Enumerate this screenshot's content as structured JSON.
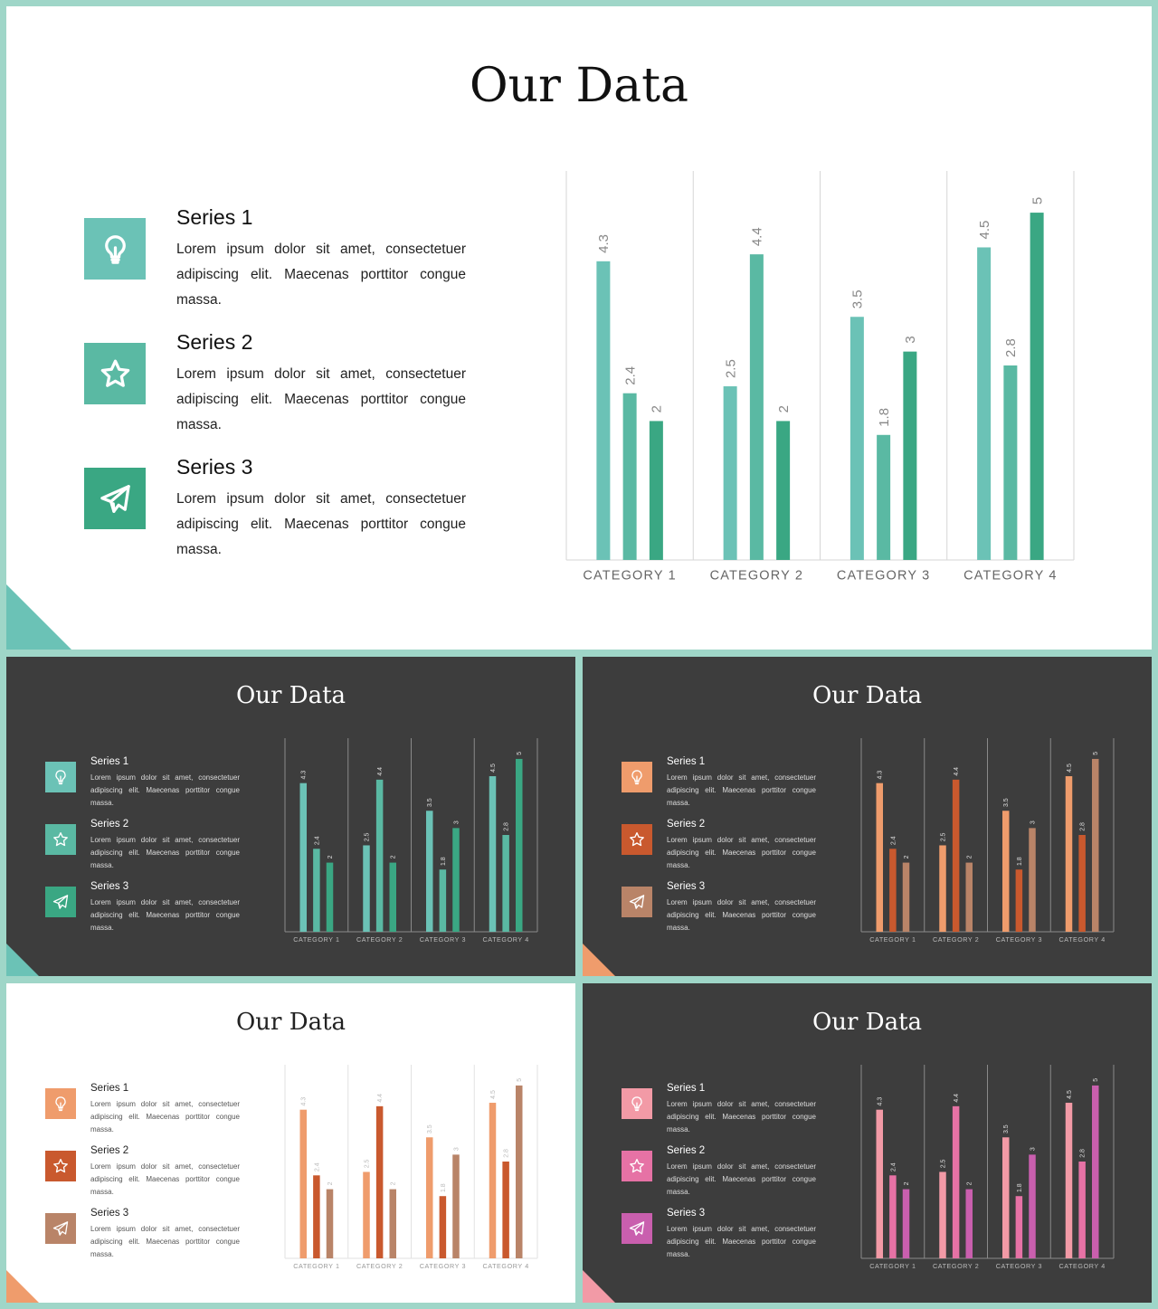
{
  "slides": [
    {
      "id": "main",
      "title": "Our Data",
      "theme": "light",
      "colors": [
        "#6bc2b6",
        "#5ab9a3",
        "#3aa783"
      ],
      "text_color": "#111111",
      "desc_color": "#222222",
      "axis_label_color": "#666666",
      "value_label_color": "#888888",
      "grid_color": "#d6d6d6",
      "corner_color": "#6bc2b6",
      "series": [
        {
          "name": "Series 1",
          "desc": "Lorem ipsum dolor sit amet, consectetuer adipiscing  elit. Maecenas porttitor congue massa.",
          "icon": "lightbulb-icon"
        },
        {
          "name": "Series 2",
          "desc": "Lorem ipsum dolor sit amet, consectetuer adipiscing  elit. Maecenas porttitor congue massa.",
          "icon": "star-icon"
        },
        {
          "name": "Series 3",
          "desc": "Lorem ipsum dolor sit amet, consectetuer adipiscing  elit. Maecenas porttitor congue massa.",
          "icon": "paper-plane-icon"
        }
      ]
    },
    {
      "id": "a",
      "title": "Our Data",
      "theme": "dark",
      "colors": [
        "#6bc2b6",
        "#5ab9a3",
        "#3aa783"
      ],
      "text_color": "#ffffff",
      "desc_color": "#dddddd",
      "axis_label_color": "#bbbbbb",
      "value_label_color": "#dddddd",
      "grid_color": "#8a8a8a",
      "corner_color": "#6bc2b6",
      "series": [
        {
          "name": "Series 1",
          "desc": "Lorem ipsum dolor sit amet, consectetuer adipiscing  elit. Maecenas porttitor congue massa.",
          "icon": "lightbulb-icon"
        },
        {
          "name": "Series 2",
          "desc": "Lorem ipsum dolor sit amet, consectetuer adipiscing  elit. Maecenas porttitor congue massa.",
          "icon": "star-icon"
        },
        {
          "name": "Series 3",
          "desc": "Lorem ipsum dolor sit amet, consectetuer adipiscing  elit. Maecenas porttitor congue massa.",
          "icon": "paper-plane-icon"
        }
      ]
    },
    {
      "id": "b",
      "title": "Our Data",
      "theme": "dark",
      "colors": [
        "#ef9c6c",
        "#c9592e",
        "#b98468"
      ],
      "text_color": "#ffffff",
      "desc_color": "#dddddd",
      "axis_label_color": "#bbbbbb",
      "value_label_color": "#dddddd",
      "grid_color": "#8a8a8a",
      "corner_color": "#ef9c6c",
      "series": [
        {
          "name": "Series 1",
          "desc": "Lorem ipsum dolor sit amet, consectetuer adipiscing  elit. Maecenas porttitor congue massa.",
          "icon": "lightbulb-icon"
        },
        {
          "name": "Series 2",
          "desc": "Lorem ipsum dolor sit amet, consectetuer adipiscing  elit. Maecenas porttitor congue massa.",
          "icon": "star-icon"
        },
        {
          "name": "Series 3",
          "desc": "Lorem ipsum dolor sit amet, consectetuer adipiscing  elit. Maecenas porttitor congue massa.",
          "icon": "paper-plane-icon"
        }
      ]
    },
    {
      "id": "c",
      "title": "Our Data",
      "theme": "light",
      "colors": [
        "#ef9c6c",
        "#c9592e",
        "#b98468"
      ],
      "text_color": "#222222",
      "desc_color": "#555555",
      "axis_label_color": "#999999",
      "value_label_color": "#bbbbbb",
      "grid_color": "#e2e2e2",
      "corner_color": "#ef9c6c",
      "series": [
        {
          "name": "Series 1",
          "desc": "Lorem ipsum dolor sit amet, consectetuer adipiscing  elit. Maecenas porttitor congue massa.",
          "icon": "lightbulb-icon"
        },
        {
          "name": "Series 2",
          "desc": "Lorem ipsum dolor sit amet, consectetuer adipiscing  elit. Maecenas porttitor congue massa.",
          "icon": "star-icon"
        },
        {
          "name": "Series 3",
          "desc": "Lorem ipsum dolor sit amet, consectetuer adipiscing  elit. Maecenas porttitor congue massa.",
          "icon": "paper-plane-icon"
        }
      ]
    },
    {
      "id": "d",
      "title": "Our Data",
      "theme": "dark",
      "colors": [
        "#f29aa6",
        "#e672a5",
        "#c95fae"
      ],
      "text_color": "#ffffff",
      "desc_color": "#dddddd",
      "axis_label_color": "#bbbbbb",
      "value_label_color": "#dddddd",
      "grid_color": "#8a8a8a",
      "corner_color": "#f29aa6",
      "series": [
        {
          "name": "Series 1",
          "desc": "Lorem ipsum dolor sit amet, consectetuer adipiscing  elit. Maecenas porttitor congue massa.",
          "icon": "lightbulb-icon"
        },
        {
          "name": "Series 2",
          "desc": "Lorem ipsum dolor sit amet, consectetuer adipiscing  elit. Maecenas porttitor congue massa.",
          "icon": "star-icon"
        },
        {
          "name": "Series 3",
          "desc": "Lorem ipsum dolor sit amet, consectetuer adipiscing  elit. Maecenas porttitor congue massa.",
          "icon": "paper-plane-icon"
        }
      ]
    }
  ],
  "chart_data": {
    "type": "bar",
    "categories": [
      "CATEGORY 1",
      "CATEGORY 2",
      "CATEGORY 3",
      "CATEGORY 4"
    ],
    "series": [
      {
        "name": "Series 1",
        "values": [
          4.3,
          2.5,
          3.5,
          4.5
        ]
      },
      {
        "name": "Series 2",
        "values": [
          2.4,
          4.4,
          1.8,
          2.8
        ]
      },
      {
        "name": "Series 3",
        "values": [
          2,
          2,
          3,
          5
        ]
      }
    ],
    "value_labels": [
      [
        "4.3",
        "2.5",
        "3.5",
        "4.5"
      ],
      [
        "2.4",
        "4.4",
        "1.8",
        "2.8"
      ],
      [
        "2",
        "2",
        "3",
        "5"
      ]
    ],
    "ylim": [
      0,
      5.6
    ],
    "grid": "vertical separators between categories",
    "legend": "none"
  }
}
